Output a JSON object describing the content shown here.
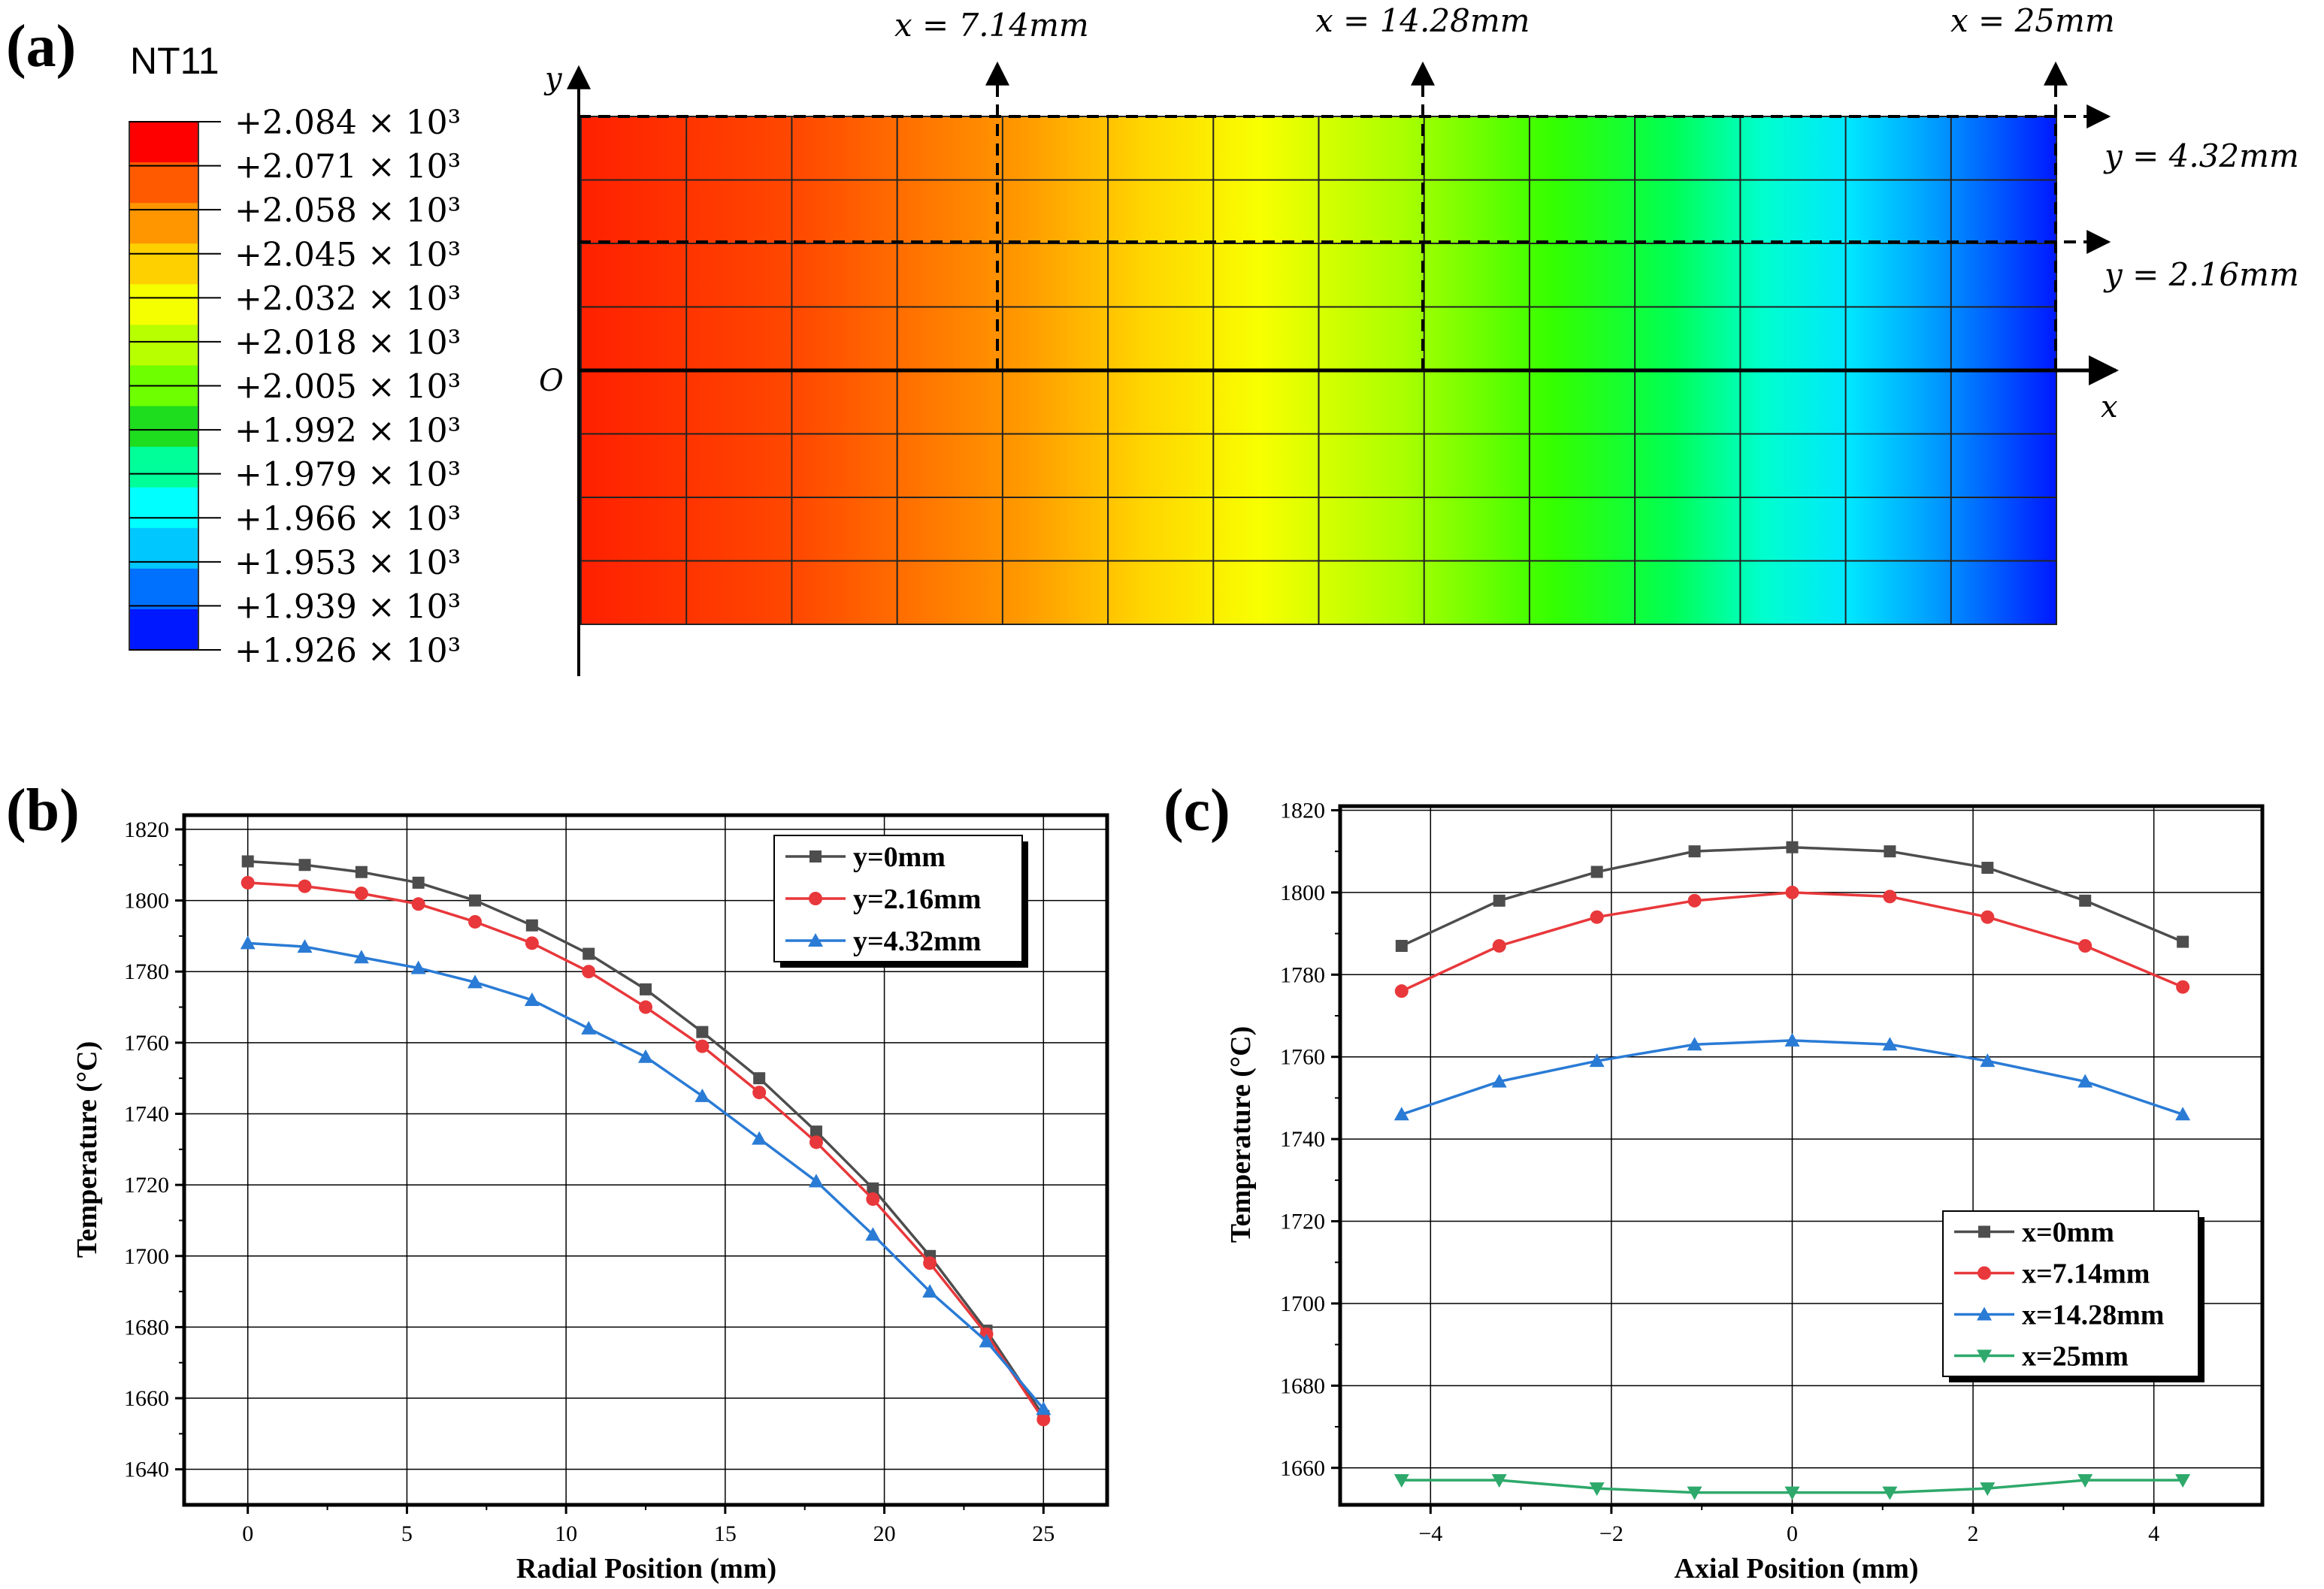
{
  "chart_data": [
    {
      "panel": "(a)",
      "type": "heatmap",
      "title": "NT11",
      "colorbar_labels": [
        "+2.084 × 10³",
        "+2.071 × 10³",
        "+2.058 × 10³",
        "+2.045 × 10³",
        "+2.032 × 10³",
        "+2.018 × 10³",
        "+2.005 × 10³",
        "+1.992 × 10³",
        "+1.979 × 10³",
        "+1.966 × 10³",
        "+1.953 × 10³",
        "+1.939 × 10³",
        "+1.926 × 10³"
      ],
      "colorbar_colors": [
        "#ff0000",
        "#ff5a00",
        "#ff9600",
        "#ffd000",
        "#f5ff00",
        "#b8ff00",
        "#6eff00",
        "#1edc1e",
        "#00ff99",
        "#00ffff",
        "#00c8ff",
        "#0070ff",
        "#0018ff"
      ],
      "color_stops": [
        {
          "pos": 0.0,
          "color": "#ff2000"
        },
        {
          "pos": 0.15,
          "color": "#ff4a00"
        },
        {
          "pos": 0.3,
          "color": "#ff9a00"
        },
        {
          "pos": 0.38,
          "color": "#ffd400"
        },
        {
          "pos": 0.46,
          "color": "#f8ff00"
        },
        {
          "pos": 0.56,
          "color": "#a8ff00"
        },
        {
          "pos": 0.66,
          "color": "#33ff00"
        },
        {
          "pos": 0.74,
          "color": "#00ff55"
        },
        {
          "pos": 0.8,
          "color": "#00ffcc"
        },
        {
          "pos": 0.86,
          "color": "#00e6ff"
        },
        {
          "pos": 0.92,
          "color": "#0099ff"
        },
        {
          "pos": 1.0,
          "color": "#0018ff"
        }
      ],
      "axis_labels": {
        "x": "x",
        "y": "y",
        "origin": "O"
      },
      "section_labels": {
        "x1": "x = 7.14mm",
        "x2": "x = 14.28mm",
        "x3": "x = 25mm",
        "y1": "y = 4.32mm",
        "y2": "y = 2.16mm"
      },
      "mesh": {
        "columns": 14,
        "rows": 8
      }
    },
    {
      "panel": "(b)",
      "type": "line",
      "xlabel": "Radial Position (mm)",
      "ylabel": "Temperature (°C)",
      "xlim": [
        -2,
        27
      ],
      "ylim": [
        1630,
        1824
      ],
      "xticks": [
        0,
        5,
        10,
        15,
        20,
        25
      ],
      "yticks": [
        1640,
        1660,
        1680,
        1700,
        1720,
        1740,
        1760,
        1780,
        1800,
        1820
      ],
      "grid": true,
      "legend_position": "top-right",
      "x": [
        0,
        1.79,
        3.57,
        5.36,
        7.14,
        8.93,
        10.71,
        12.5,
        14.28,
        16.07,
        17.86,
        19.64,
        21.43,
        23.21,
        25
      ],
      "series": [
        {
          "name": "y=0mm",
          "color": "#4d4d4d",
          "marker": "square",
          "values": [
            1811,
            1810,
            1808,
            1805,
            1800,
            1793,
            1785,
            1775,
            1763,
            1750,
            1735,
            1719,
            1700,
            1679,
            1655
          ]
        },
        {
          "name": "y=2.16mm",
          "color": "#e8383b",
          "marker": "circle",
          "values": [
            1805,
            1804,
            1802,
            1799,
            1794,
            1788,
            1780,
            1770,
            1759,
            1746,
            1732,
            1716,
            1698,
            1678,
            1654
          ]
        },
        {
          "name": "y=4.32mm",
          "color": "#2a7bd5",
          "marker": "triangle-up",
          "values": [
            1788,
            1787,
            1784,
            1781,
            1777,
            1772,
            1764,
            1756,
            1745,
            1733,
            1721,
            1706,
            1690,
            1676,
            1657
          ]
        }
      ]
    },
    {
      "panel": "(c)",
      "type": "line",
      "xlabel": "Axial Position (mm)",
      "ylabel": "Temperature (°C)",
      "xlim": [
        -5,
        5.2
      ],
      "ylim": [
        1651,
        1821
      ],
      "xticks": [
        -4,
        -2,
        0,
        2,
        4
      ],
      "yticks": [
        1660,
        1680,
        1700,
        1720,
        1740,
        1760,
        1780,
        1800,
        1820
      ],
      "grid": true,
      "legend_position": "bottom-right",
      "x": [
        -4.32,
        -3.24,
        -2.16,
        -1.08,
        0,
        1.08,
        2.16,
        3.24,
        4.32
      ],
      "series": [
        {
          "name": "x=0mm",
          "color": "#4d4d4d",
          "marker": "square",
          "values": [
            1787,
            1798,
            1805,
            1810,
            1811,
            1810,
            1806,
            1798,
            1788
          ]
        },
        {
          "name": "x=7.14mm",
          "color": "#e8383b",
          "marker": "circle",
          "values": [
            1776,
            1787,
            1794,
            1798,
            1800,
            1799,
            1794,
            1787,
            1777
          ]
        },
        {
          "name": "x=14.28mm",
          "color": "#2a7bd5",
          "marker": "triangle-up",
          "values": [
            1746,
            1754,
            1759,
            1763,
            1764,
            1763,
            1759,
            1754,
            1746
          ]
        },
        {
          "name": "x=25mm",
          "color": "#2ea96b",
          "marker": "triangle-down",
          "values": [
            1657,
            1657,
            1655,
            1654,
            1654,
            1654,
            1655,
            1657,
            1657
          ]
        }
      ]
    }
  ]
}
